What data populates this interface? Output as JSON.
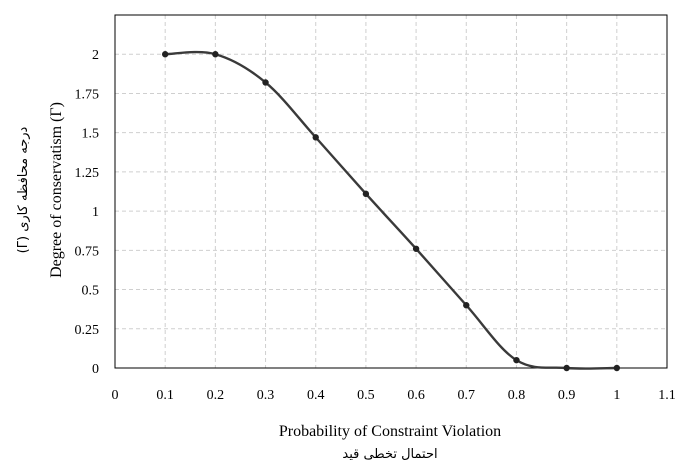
{
  "chart_data": {
    "type": "line",
    "title": "",
    "xlabel": "Probability of Constraint Violation",
    "xlabel_fa": "احتمال تخطی قید",
    "ylabel": "Degree of conservatism (Γ)",
    "ylabel_fa": "درجه محافظه کاری (Γ)",
    "xlim": [
      0,
      1.1
    ],
    "ylim": [
      0,
      2.25
    ],
    "grid": true,
    "smooth": true,
    "x_ticks": [
      "0",
      "0.1",
      "0.2",
      "0.3",
      "0.4",
      "0.5",
      "0.6",
      "0.7",
      "0.8",
      "0.9",
      "1",
      "1.1"
    ],
    "y_ticks": [
      "0",
      "0.25",
      "0.5",
      "0.75",
      "1",
      "1.25",
      "1.5",
      "1.75",
      "2"
    ],
    "series": [
      {
        "x": [
          0.1,
          0.2,
          0.3,
          0.4,
          0.5,
          0.6,
          0.7,
          0.8,
          0.9,
          1.0
        ],
        "y": [
          2.0,
          2.0,
          1.82,
          1.47,
          1.11,
          0.76,
          0.4,
          0.05,
          0.0,
          0.0
        ]
      }
    ]
  }
}
